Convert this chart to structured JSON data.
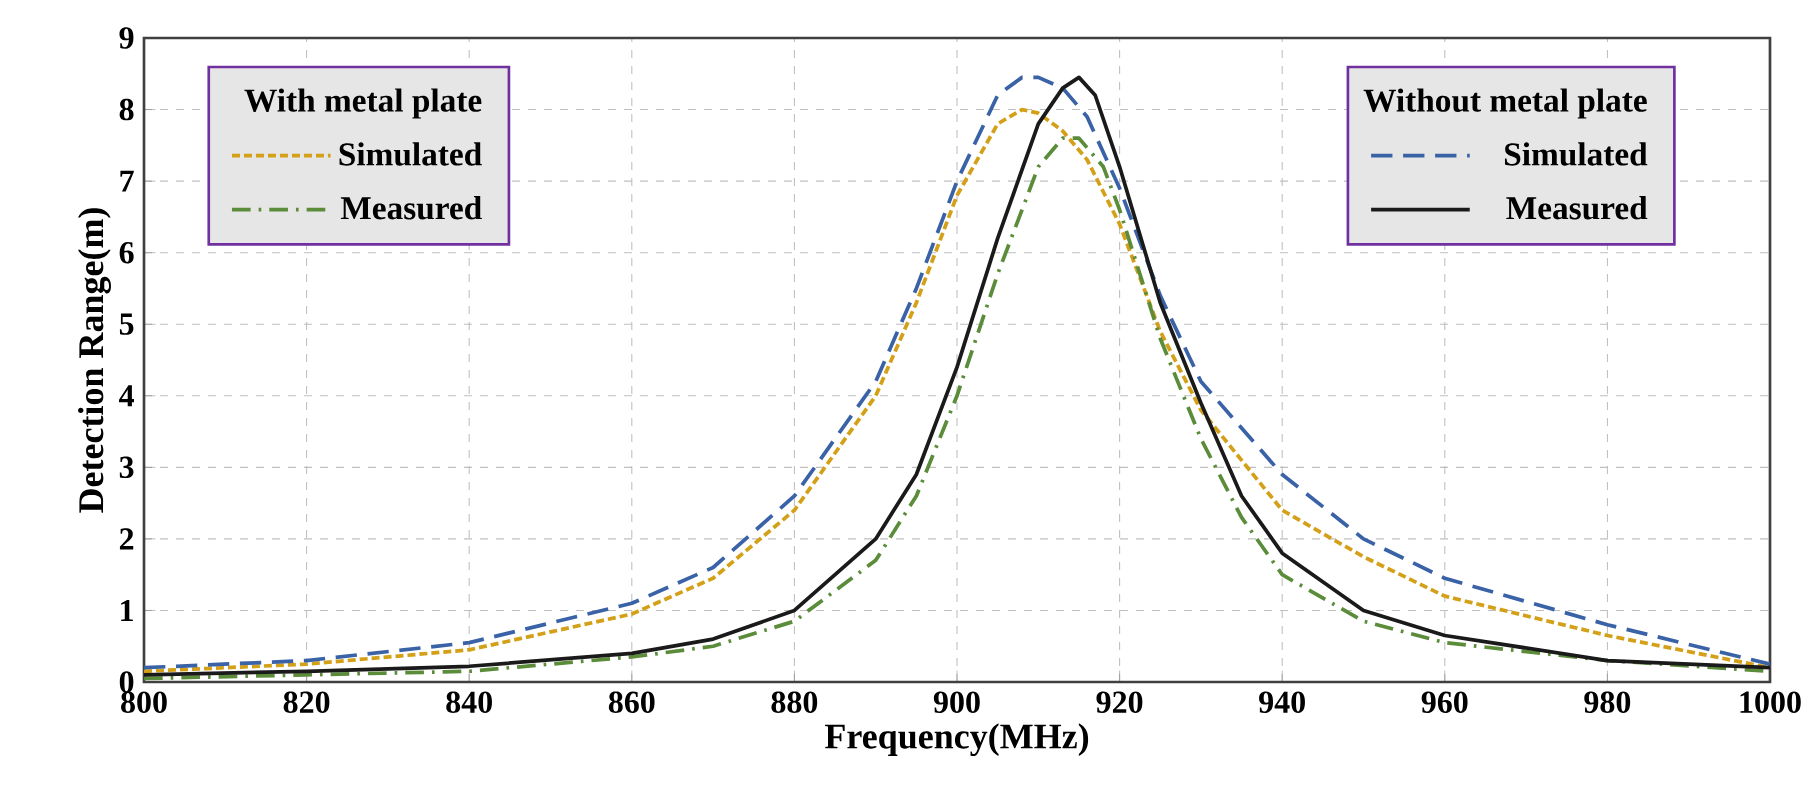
{
  "chart_data": {
    "type": "line",
    "xlabel": "Frequency(MHz)",
    "ylabel": "Detection Range(m)",
    "xlim": [
      800,
      1000
    ],
    "xticks": [
      800,
      820,
      840,
      860,
      880,
      900,
      920,
      940,
      960,
      980,
      1000
    ],
    "ylim": [
      0,
      9
    ],
    "yticks": [
      0,
      1,
      2,
      3,
      4,
      5,
      6,
      7,
      8,
      9
    ],
    "grid": true,
    "legend": "top",
    "annotations": [
      "With metal plate",
      "Without metal plate"
    ],
    "series": [
      {
        "name": "Simulated",
        "color": "#d4a017",
        "line_style": "dashed",
        "x": [
          800,
          820,
          840,
          860,
          870,
          880,
          890,
          895,
          900,
          905,
          908,
          910,
          913,
          916,
          920,
          925,
          930,
          940,
          950,
          960,
          980,
          1000
        ],
        "values": [
          0.15,
          0.25,
          0.45,
          0.95,
          1.45,
          2.4,
          4.0,
          5.3,
          6.8,
          7.8,
          8.0,
          7.95,
          7.7,
          7.3,
          6.4,
          4.9,
          3.8,
          2.4,
          1.75,
          1.2,
          0.65,
          0.2
        ]
      },
      {
        "name": "Measured",
        "color": "#5b8c3a",
        "line_style": "dashdot",
        "x": [
          800,
          820,
          840,
          860,
          870,
          880,
          890,
          895,
          900,
          905,
          910,
          913,
          915,
          918,
          920,
          925,
          930,
          935,
          940,
          950,
          960,
          980,
          1000
        ],
        "values": [
          0.05,
          0.1,
          0.15,
          0.35,
          0.5,
          0.85,
          1.7,
          2.6,
          4.0,
          5.7,
          7.2,
          7.6,
          7.6,
          7.2,
          6.6,
          4.8,
          3.4,
          2.3,
          1.5,
          0.85,
          0.55,
          0.3,
          0.15
        ]
      },
      {
        "name": "Simulated",
        "color": "#3a62a7",
        "line_style": "longdashed",
        "x": [
          800,
          820,
          840,
          860,
          870,
          880,
          890,
          895,
          900,
          905,
          908,
          910,
          913,
          916,
          920,
          925,
          930,
          940,
          950,
          960,
          980,
          1000
        ],
        "values": [
          0.2,
          0.3,
          0.55,
          1.1,
          1.6,
          2.6,
          4.2,
          5.5,
          7.0,
          8.2,
          8.45,
          8.45,
          8.3,
          7.9,
          6.9,
          5.4,
          4.2,
          2.9,
          2.0,
          1.45,
          0.8,
          0.25
        ]
      },
      {
        "name": "Measured",
        "color": "#1a1a1a",
        "line_style": "solid",
        "x": [
          800,
          820,
          840,
          860,
          870,
          880,
          890,
          895,
          900,
          905,
          910,
          913,
          915,
          917,
          920,
          925,
          930,
          935,
          940,
          950,
          960,
          980,
          1000
        ],
        "values": [
          0.1,
          0.15,
          0.22,
          0.4,
          0.6,
          1.0,
          2.0,
          2.9,
          4.4,
          6.2,
          7.8,
          8.3,
          8.45,
          8.2,
          7.2,
          5.3,
          3.9,
          2.6,
          1.8,
          1.0,
          0.65,
          0.3,
          0.2
        ]
      }
    ]
  }
}
